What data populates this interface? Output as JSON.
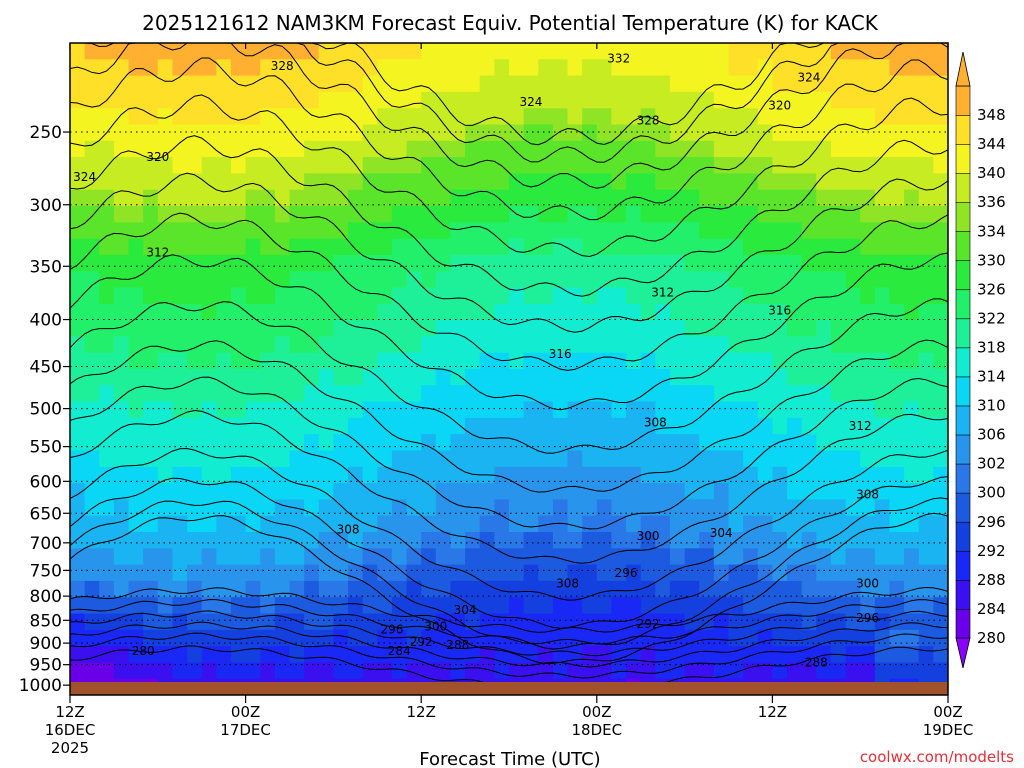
{
  "chart_data": {
    "type": "heatmap",
    "title": "2025121612 NAM3KM Forecast Equiv. Potential Temperature (K) for KACK",
    "xlabel": "Forecast Time (UTC)",
    "ylabel": "",
    "credit": "coolwx.com/modelts",
    "x_range_hours": [
      0,
      60
    ],
    "x_ticks": [
      {
        "hour": 0,
        "line1": "12Z",
        "line2": "16DEC",
        "line3": "2025"
      },
      {
        "hour": 12,
        "line1": "00Z",
        "line2": "17DEC",
        "line3": ""
      },
      {
        "hour": 24,
        "line1": "12Z",
        "line2": "",
        "line3": ""
      },
      {
        "hour": 36,
        "line1": "00Z",
        "line2": "18DEC",
        "line3": ""
      },
      {
        "hour": 48,
        "line1": "12Z",
        "line2": "",
        "line3": ""
      },
      {
        "hour": 60,
        "line1": "00Z",
        "line2": "19DEC",
        "line3": ""
      }
    ],
    "y_scale": "log-pressure (hPa, inverted)",
    "y_range_hpa": [
      200,
      1025
    ],
    "y_ticks": [
      250,
      300,
      350,
      400,
      450,
      500,
      550,
      600,
      650,
      700,
      750,
      800,
      850,
      900,
      950,
      1000
    ],
    "colorbar": {
      "levels": [
        280,
        284,
        288,
        292,
        296,
        300,
        302,
        306,
        310,
        314,
        318,
        322,
        326,
        330,
        334,
        336,
        340,
        344,
        348
      ],
      "colors": [
        "#6a00e8",
        "#3a10f0",
        "#1a28f5",
        "#1440e0",
        "#1c5ae0",
        "#2a78e8",
        "#2894ec",
        "#1ab4f2",
        "#0ad6f6",
        "#12ecd0",
        "#1ef09a",
        "#22f06a",
        "#2aea3e",
        "#5ae42a",
        "#90e426",
        "#c8ec22",
        "#f4f420",
        "#ffe028",
        "#ffb030"
      ]
    },
    "contour_labels": [
      {
        "v": "328",
        "t": 14.5,
        "p": 212
      },
      {
        "v": "332",
        "t": 37.5,
        "p": 208
      },
      {
        "v": "324",
        "t": 50.5,
        "p": 218
      },
      {
        "v": "324",
        "t": 31.5,
        "p": 232
      },
      {
        "v": "328",
        "t": 39.5,
        "p": 243
      },
      {
        "v": "320",
        "t": 48.5,
        "p": 234
      },
      {
        "v": "324",
        "t": 1,
        "p": 280
      },
      {
        "v": "320",
        "t": 6,
        "p": 266
      },
      {
        "v": "312",
        "t": 6,
        "p": 338
      },
      {
        "v": "312",
        "t": 40.5,
        "p": 374
      },
      {
        "v": "316",
        "t": 48.5,
        "p": 391
      },
      {
        "v": "316",
        "t": 33.5,
        "p": 436
      },
      {
        "v": "308",
        "t": 40,
        "p": 518
      },
      {
        "v": "312",
        "t": 54,
        "p": 522
      },
      {
        "v": "308",
        "t": 54.5,
        "p": 620
      },
      {
        "v": "308",
        "t": 19,
        "p": 677
      },
      {
        "v": "300",
        "t": 39.5,
        "p": 688
      },
      {
        "v": "304",
        "t": 44.5,
        "p": 683
      },
      {
        "v": "296",
        "t": 38,
        "p": 755
      },
      {
        "v": "308",
        "t": 34,
        "p": 775
      },
      {
        "v": "300",
        "t": 54.5,
        "p": 775
      },
      {
        "v": "304",
        "t": 27,
        "p": 828
      },
      {
        "v": "296",
        "t": 54.5,
        "p": 845
      },
      {
        "v": "292",
        "t": 39.5,
        "p": 858
      },
      {
        "v": "296",
        "t": 22,
        "p": 870
      },
      {
        "v": "300",
        "t": 25,
        "p": 863
      },
      {
        "v": "292",
        "t": 24,
        "p": 897
      },
      {
        "v": "288",
        "t": 26.5,
        "p": 904
      },
      {
        "v": "284",
        "t": 22.5,
        "p": 918
      },
      {
        "v": "280",
        "t": 5,
        "p": 918
      },
      {
        "v": "288",
        "t": 51,
        "p": 945
      }
    ]
  }
}
